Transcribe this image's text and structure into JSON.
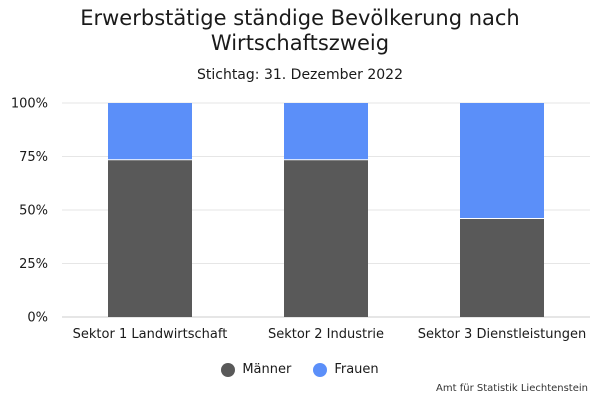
{
  "chart_data": {
    "type": "bar",
    "stacked": true,
    "title": "Erwerbstätige ständige Bevölkerung nach Wirtschaftszweig",
    "subtitle": "Stichtag: 31. Dezember 2022",
    "categories": [
      "Sektor 1 Landwirtschaft",
      "Sektor 2 Industrie",
      "Sektor 3 Dienstleistungen"
    ],
    "series": [
      {
        "name": "Männer",
        "color": "#595959",
        "values": [
          73.5,
          73.5,
          46
        ]
      },
      {
        "name": "Frauen",
        "color": "#5b8ff9",
        "values": [
          26.5,
          26.5,
          54
        ]
      }
    ],
    "y_ticks": [
      "0%",
      "25%",
      "50%",
      "75%",
      "100%"
    ],
    "ylim": [
      0,
      100
    ],
    "grid": true,
    "legend_position": "bottom",
    "credit": "Amt für Statistik Liechtenstein"
  }
}
